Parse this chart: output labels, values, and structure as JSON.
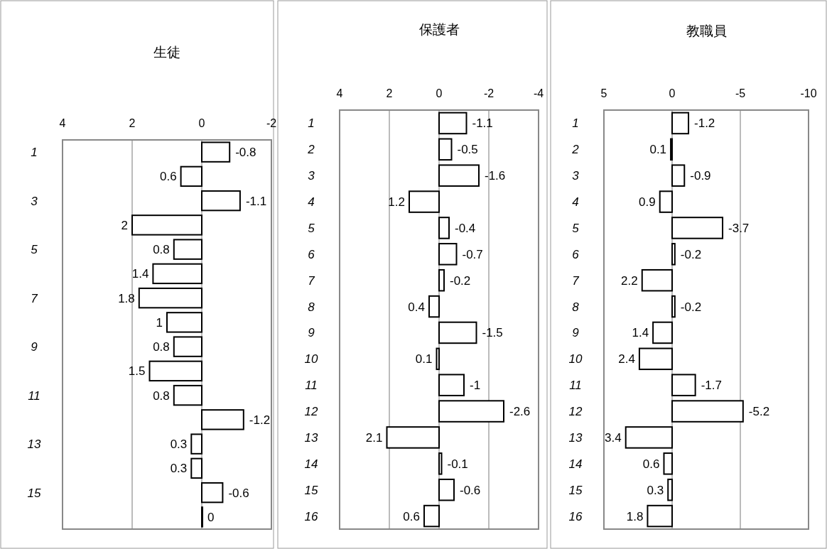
{
  "chart_data": [
    {
      "type": "bar",
      "orientation": "horizontal",
      "title": "生徒",
      "categories": [
        "1",
        null,
        "3",
        null,
        "5",
        null,
        "7",
        null,
        "9",
        null,
        "11",
        null,
        "13",
        null,
        "15",
        null
      ],
      "values": [
        -0.8,
        0.6,
        -1.1,
        2,
        0.8,
        1.4,
        1.8,
        1,
        0.8,
        1.5,
        0.8,
        -1.2,
        0.3,
        0.3,
        -0.6,
        0
      ],
      "color": "#ffffff",
      "xlim": [
        4,
        -2
      ],
      "xticks": [
        4,
        2,
        0,
        -2
      ],
      "grid": "x",
      "data_labels": true
    },
    {
      "type": "bar",
      "orientation": "horizontal",
      "title": "保護者",
      "categories": [
        "1",
        "2",
        "3",
        "4",
        "5",
        "6",
        "7",
        "8",
        "9",
        "10",
        "11",
        "12",
        "13",
        "14",
        "15",
        "16"
      ],
      "values": [
        -1.1,
        -0.5,
        -1.6,
        1.2,
        -0.4,
        -0.7,
        -0.2,
        0.4,
        -1.5,
        0.1,
        -1,
        -2.6,
        2.1,
        -0.1,
        -0.6,
        0.6
      ],
      "color": "#ffffff",
      "xlim": [
        4,
        -4
      ],
      "xticks": [
        4,
        2,
        0,
        -2,
        -4
      ],
      "grid": "x",
      "data_labels": true
    },
    {
      "type": "bar",
      "orientation": "horizontal",
      "title": "教職員",
      "categories": [
        "1",
        "2",
        "3",
        "4",
        "5",
        "6",
        "7",
        "8",
        "9",
        "10",
        "11",
        "12",
        "13",
        "14",
        "15",
        "16"
      ],
      "values": [
        -1.2,
        0.1,
        -0.9,
        0.9,
        -3.7,
        -0.2,
        2.2,
        -0.2,
        1.4,
        2.4,
        -1.7,
        -5.2,
        3.4,
        0.6,
        0.3,
        1.8
      ],
      "color": "#ffffff",
      "xlim": [
        5,
        -10
      ],
      "xticks": [
        5,
        0,
        -5,
        -10
      ],
      "grid": "x",
      "data_labels": true
    }
  ]
}
